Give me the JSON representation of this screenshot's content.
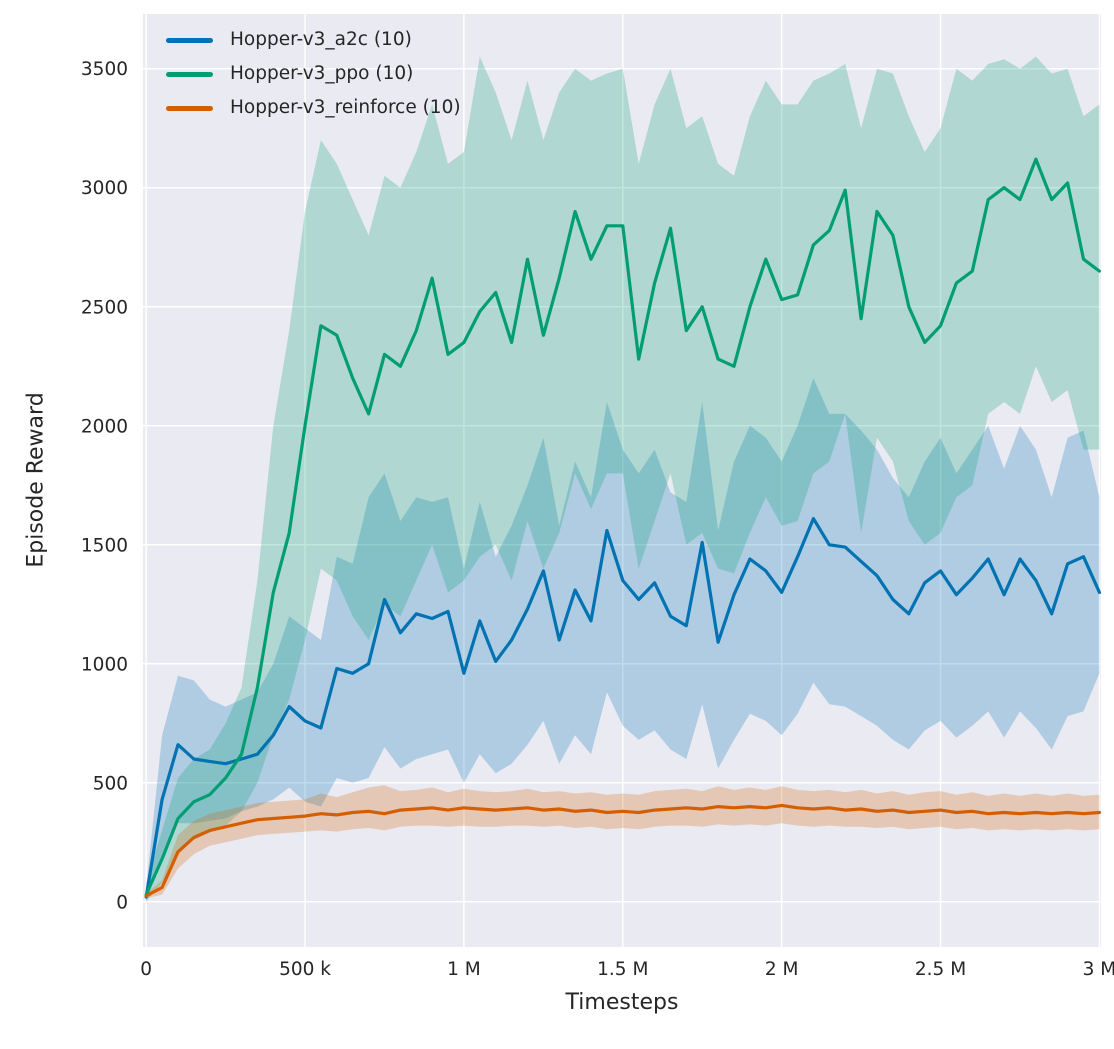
{
  "chart_data": {
    "type": "line",
    "title": "",
    "xlabel": "Timesteps",
    "ylabel": "Episode Reward",
    "legend_position": "upper-left",
    "grid": true,
    "background": "#eaeaf2",
    "grid_color": "#ffffff",
    "text_color": "#262626",
    "xlim": [
      -10000,
      3005000
    ],
    "ylim": [
      -190,
      3730
    ],
    "x_ticks": {
      "values": [
        0,
        500000,
        1000000,
        1500000,
        2000000,
        2500000,
        3000000
      ],
      "labels": [
        "0",
        "500 k",
        "1 M",
        "1.5 M",
        "2 M",
        "2.5 M",
        "3 M"
      ]
    },
    "y_ticks": {
      "values": [
        0,
        500,
        1000,
        1500,
        2000,
        2500,
        3000,
        3500
      ],
      "labels": [
        "0",
        "500",
        "1000",
        "1500",
        "2000",
        "2500",
        "3000",
        "3500"
      ]
    },
    "x_unit": 1000,
    "x_k": [
      0,
      50,
      100,
      150,
      200,
      250,
      300,
      350,
      400,
      450,
      500,
      550,
      600,
      650,
      700,
      750,
      800,
      850,
      900,
      950,
      1000,
      1050,
      1100,
      1150,
      1200,
      1250,
      1300,
      1350,
      1400,
      1450,
      1500,
      1550,
      1600,
      1650,
      1700,
      1750,
      1800,
      1850,
      1900,
      1950,
      2000,
      2050,
      2100,
      2150,
      2200,
      2250,
      2300,
      2350,
      2400,
      2450,
      2500,
      2550,
      2600,
      2650,
      2700,
      2750,
      2800,
      2850,
      2900,
      2950,
      3000
    ],
    "series": [
      {
        "name": "Hopper-v3_a2c",
        "label": "Hopper-v3_a2c (10)",
        "color": "#0173b2",
        "band_alpha": 0.25,
        "mean": [
          20,
          430,
          660,
          600,
          590,
          580,
          600,
          620,
          700,
          820,
          760,
          730,
          980,
          960,
          1000,
          1270,
          1130,
          1210,
          1190,
          1220,
          960,
          1180,
          1010,
          1100,
          1230,
          1390,
          1100,
          1310,
          1180,
          1560,
          1350,
          1270,
          1340,
          1200,
          1160,
          1510,
          1090,
          1290,
          1440,
          1390,
          1300,
          1450,
          1610,
          1500,
          1490,
          1430,
          1370,
          1270,
          1210,
          1340,
          1390,
          1290,
          1360,
          1440,
          1290,
          1440,
          1350,
          1210,
          1420,
          1450,
          1300
        ],
        "lower": [
          0,
          200,
          330,
          330,
          340,
          350,
          380,
          400,
          430,
          480,
          420,
          400,
          520,
          500,
          520,
          650,
          560,
          600,
          620,
          640,
          500,
          620,
          540,
          580,
          660,
          760,
          580,
          700,
          620,
          880,
          740,
          680,
          720,
          640,
          600,
          830,
          560,
          680,
          790,
          760,
          700,
          790,
          920,
          830,
          820,
          780,
          740,
          680,
          640,
          720,
          760,
          690,
          740,
          800,
          690,
          800,
          730,
          640,
          780,
          800,
          960
        ],
        "upper": [
          60,
          700,
          950,
          930,
          850,
          820,
          850,
          880,
          1000,
          1200,
          1150,
          1100,
          1450,
          1420,
          1700,
          1800,
          1600,
          1700,
          1680,
          1700,
          1400,
          1680,
          1450,
          1580,
          1750,
          1950,
          1580,
          1850,
          1700,
          2100,
          1900,
          1800,
          1900,
          1720,
          1680,
          2100,
          1560,
          1850,
          2000,
          1950,
          1850,
          2000,
          2200,
          2050,
          2050,
          1980,
          1900,
          1780,
          1700,
          1850,
          1950,
          1800,
          1900,
          2000,
          1820,
          2000,
          1900,
          1700,
          1950,
          1980,
          1700
        ]
      },
      {
        "name": "Hopper-v3_ppo",
        "label": "Hopper-v3_ppo (10)",
        "color": "#029e73",
        "band_alpha": 0.25,
        "mean": [
          30,
          180,
          350,
          420,
          450,
          520,
          620,
          900,
          1300,
          1550,
          2000,
          2420,
          2380,
          2200,
          2050,
          2300,
          2250,
          2400,
          2620,
          2300,
          2350,
          2480,
          2560,
          2350,
          2700,
          2380,
          2620,
          2900,
          2700,
          2840,
          2840,
          2280,
          2600,
          2830,
          2400,
          2500,
          2280,
          2250,
          2500,
          2700,
          2530,
          2550,
          2760,
          2820,
          2990,
          2450,
          2900,
          2800,
          2500,
          2350,
          2420,
          2600,
          2650,
          2950,
          3000,
          2950,
          3120,
          2950,
          3020,
          2700,
          2650
        ],
        "lower": [
          0,
          80,
          200,
          260,
          290,
          320,
          380,
          500,
          700,
          850,
          1100,
          1400,
          1350,
          1200,
          1100,
          1250,
          1200,
          1350,
          1500,
          1300,
          1350,
          1450,
          1500,
          1350,
          1600,
          1400,
          1550,
          1800,
          1650,
          1800,
          1800,
          1400,
          1600,
          1800,
          1500,
          1550,
          1400,
          1380,
          1550,
          1700,
          1580,
          1600,
          1800,
          1850,
          2050,
          1550,
          1950,
          1850,
          1600,
          1500,
          1550,
          1700,
          1750,
          2050,
          2100,
          2050,
          2250,
          2100,
          2150,
          1900,
          1900
        ],
        "upper": [
          80,
          300,
          520,
          600,
          640,
          750,
          900,
          1350,
          2000,
          2400,
          2900,
          3200,
          3100,
          2950,
          2800,
          3050,
          3000,
          3150,
          3350,
          3100,
          3150,
          3550,
          3400,
          3200,
          3450,
          3200,
          3400,
          3500,
          3450,
          3480,
          3500,
          3100,
          3350,
          3500,
          3250,
          3300,
          3100,
          3050,
          3300,
          3450,
          3350,
          3350,
          3450,
          3480,
          3520,
          3250,
          3500,
          3480,
          3300,
          3150,
          3250,
          3500,
          3450,
          3520,
          3540,
          3500,
          3550,
          3480,
          3500,
          3300,
          3350
        ]
      },
      {
        "name": "Hopper-v3_reinforce",
        "label": "Hopper-v3_reinforce (10)",
        "color": "#d55e00",
        "band_alpha": 0.25,
        "mean": [
          25,
          60,
          210,
          270,
          300,
          315,
          330,
          345,
          350,
          355,
          360,
          370,
          365,
          375,
          380,
          370,
          385,
          390,
          395,
          385,
          395,
          390,
          385,
          390,
          395,
          385,
          390,
          380,
          385,
          375,
          380,
          375,
          385,
          390,
          395,
          390,
          400,
          395,
          400,
          395,
          405,
          395,
          390,
          395,
          385,
          390,
          380,
          385,
          375,
          380,
          385,
          375,
          380,
          370,
          375,
          370,
          375,
          370,
          375,
          370,
          375
        ],
        "lower": [
          15,
          30,
          140,
          200,
          235,
          250,
          265,
          280,
          285,
          290,
          295,
          300,
          295,
          305,
          310,
          300,
          315,
          320,
          320,
          315,
          320,
          315,
          315,
          320,
          320,
          315,
          320,
          310,
          315,
          305,
          310,
          305,
          315,
          320,
          320,
          315,
          325,
          320,
          325,
          320,
          330,
          320,
          315,
          320,
          315,
          315,
          310,
          315,
          305,
          310,
          315,
          305,
          310,
          300,
          305,
          300,
          305,
          300,
          305,
          300,
          305
        ],
        "upper": [
          35,
          90,
          280,
          340,
          370,
          385,
          400,
          415,
          420,
          425,
          430,
          455,
          440,
          460,
          480,
          490,
          465,
          470,
          480,
          460,
          475,
          465,
          460,
          465,
          475,
          460,
          465,
          455,
          460,
          450,
          455,
          450,
          465,
          470,
          475,
          465,
          485,
          470,
          480,
          470,
          485,
          470,
          465,
          470,
          460,
          470,
          455,
          465,
          450,
          460,
          465,
          450,
          460,
          445,
          455,
          445,
          455,
          445,
          455,
          445,
          450
        ]
      }
    ]
  }
}
